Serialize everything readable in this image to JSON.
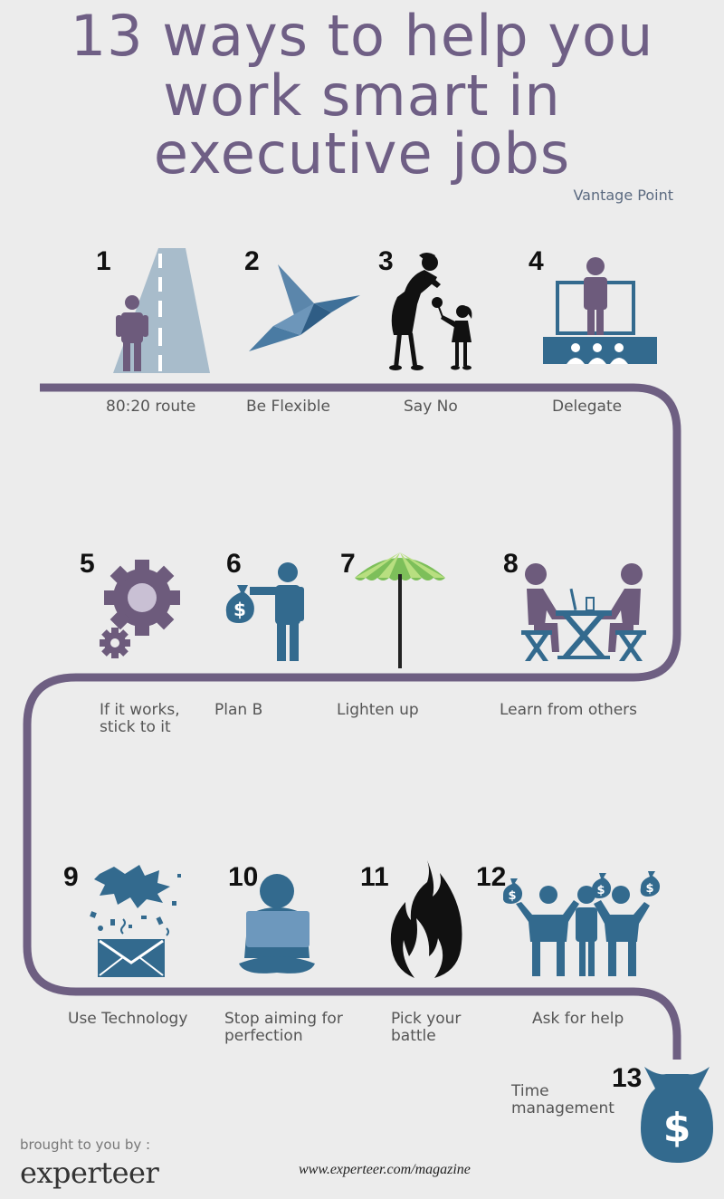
{
  "header": {
    "title_lines": [
      "13 ways to help you",
      "work smart in",
      "executive jobs"
    ],
    "byline": "Vantage Point"
  },
  "steps": [
    {
      "number": "1",
      "label_lines": [
        "80:20 route"
      ],
      "icon": "road-person-icon"
    },
    {
      "number": "2",
      "label_lines": [
        "Be Flexible"
      ],
      "icon": "origami-bird-icon"
    },
    {
      "number": "3",
      "label_lines": [
        "Say No"
      ],
      "icon": "mother-child-icon"
    },
    {
      "number": "4",
      "label_lines": [
        "Delegate"
      ],
      "icon": "presenter-audience-icon"
    },
    {
      "number": "5",
      "label_lines": [
        "If it works,",
        "stick to it"
      ],
      "icon": "gears-icon"
    },
    {
      "number": "6",
      "label_lines": [
        "Plan B"
      ],
      "icon": "person-money-bag-icon"
    },
    {
      "number": "7",
      "label_lines": [
        "Lighten up"
      ],
      "icon": "beach-umbrella-icon"
    },
    {
      "number": "8",
      "label_lines": [
        "Learn from others"
      ],
      "icon": "two-people-table-icon"
    },
    {
      "number": "9",
      "label_lines": [
        "Use Technology"
      ],
      "icon": "exploding-envelope-icon"
    },
    {
      "number": "10",
      "label_lines": [
        "Stop aiming for",
        "perfection"
      ],
      "icon": "person-laptop-icon"
    },
    {
      "number": "11",
      "label_lines": [
        "Pick your",
        "battle"
      ],
      "icon": "flame-icon"
    },
    {
      "number": "12",
      "label_lines": [
        "Ask for help"
      ],
      "icon": "people-money-bags-icon"
    },
    {
      "number": "13",
      "label_lines": [
        "Time",
        "management"
      ],
      "icon": "money-bag-icon"
    }
  ],
  "footer": {
    "brought_by": "brought to you by :",
    "brand": "experteer",
    "url": "www.experteer.com/magazine"
  },
  "colors": {
    "title": "#6f5f85",
    "road": "#6e5f82",
    "blue": "#336a8e",
    "purple": "#6a5a80",
    "green": "#7dbf5a"
  }
}
